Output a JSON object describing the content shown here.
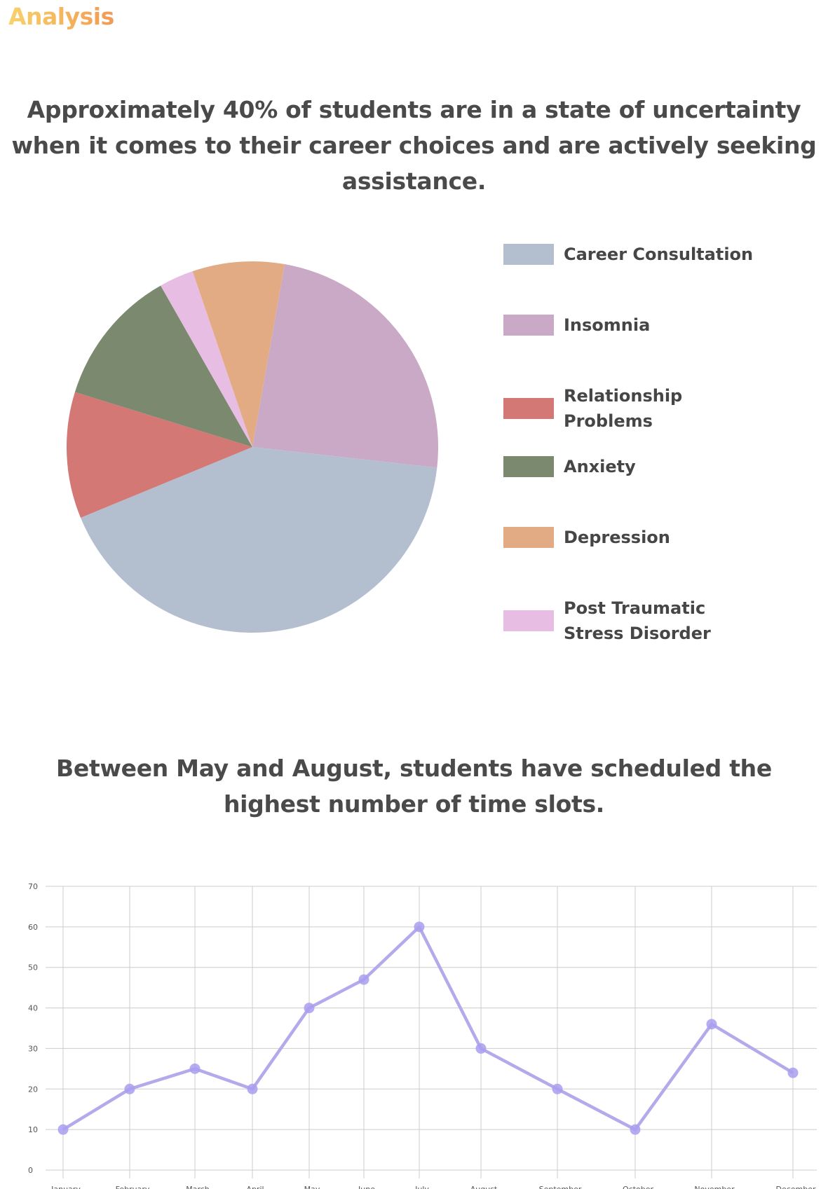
{
  "brand": {
    "title": "Analysis"
  },
  "sections": {
    "pie_heading": "Approximately 40% of students are in a state of uncertainty when it comes to their career choices and are actively seeking assistance.",
    "line_heading": "Between May and August, students have scheduled the highest number of time slots."
  },
  "colors": {
    "background": "#ffffff",
    "heading": "#4a4a4a",
    "line": "#b3aaeb",
    "point": "#a99df0",
    "grid": "#cccccc"
  },
  "chart_data": [
    {
      "type": "pie",
      "title": "",
      "slices": [
        {
          "label": "Career Consultation",
          "value": 42,
          "color": "#b3becf"
        },
        {
          "label": "Insomnia",
          "value": 24,
          "color": "#c9a9c6"
        },
        {
          "label": "Relationship Problems",
          "value": 11,
          "color": "#d37875"
        },
        {
          "label": "Anxiety",
          "value": 12,
          "color": "#7b8a6f"
        },
        {
          "label": "Depression",
          "value": 8,
          "color": "#e3ab84"
        },
        {
          "label": "Post Traumatic Stress Disorder",
          "value": 3,
          "color": "#e8bde3"
        }
      ],
      "legend_position": "right"
    },
    {
      "type": "line",
      "title": "",
      "categories": [
        "January",
        "February",
        "March",
        "April",
        "May",
        "June",
        "July",
        "August",
        "September",
        "October",
        "November",
        "December"
      ],
      "series": [
        {
          "name": "Time slots",
          "values": [
            10,
            20,
            25,
            20,
            40,
            47,
            60,
            30,
            20,
            10,
            36,
            24
          ]
        }
      ],
      "xlabel": "",
      "ylabel": "",
      "ylim": [
        0,
        70
      ],
      "yticks": [
        0,
        10,
        20,
        30,
        40,
        50,
        60,
        70
      ],
      "grid": true
    }
  ]
}
